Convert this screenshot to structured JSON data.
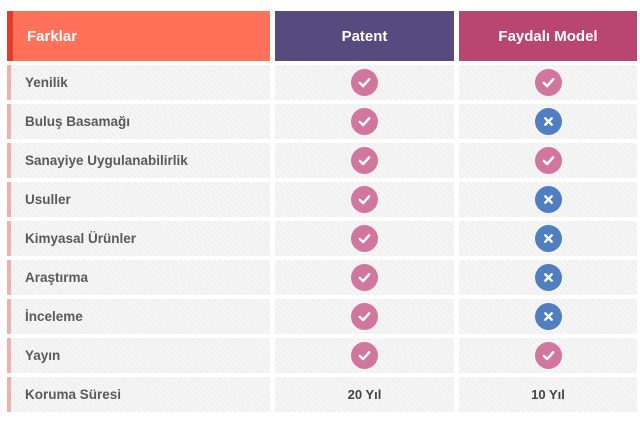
{
  "colors": {
    "header_farklar": "#ff7158",
    "header_patent": "#574a7e",
    "header_faydali": "#b9466f",
    "check": "#d1769f",
    "cross": "#4f7fbf"
  },
  "header": {
    "farklar": "Farklar",
    "patent": "Patent",
    "faydali": "Faydalı Model"
  },
  "rows": [
    {
      "label": "Yenilik",
      "patent": "check-icon",
      "faydali": "check-icon"
    },
    {
      "label": "Buluş Basamağı",
      "patent": "check-icon",
      "faydali": "cross-icon"
    },
    {
      "label": "Sanayiye Uygulanabilirlik",
      "patent": "check-icon",
      "faydali": "check-icon"
    },
    {
      "label": "Usuller",
      "patent": "check-icon",
      "faydali": "cross-icon"
    },
    {
      "label": "Kimyasal Ürünler",
      "patent": "check-icon",
      "faydali": "cross-icon"
    },
    {
      "label": "Araştırma",
      "patent": "check-icon",
      "faydali": "cross-icon"
    },
    {
      "label": "İnceleme",
      "patent": "check-icon",
      "faydali": "cross-icon"
    },
    {
      "label": "Yayın",
      "patent": "check-icon",
      "faydali": "check-icon"
    },
    {
      "label": "Koruma Süresi",
      "patent_value": "20 Yıl",
      "faydali_value": "10 Yıl"
    }
  ]
}
